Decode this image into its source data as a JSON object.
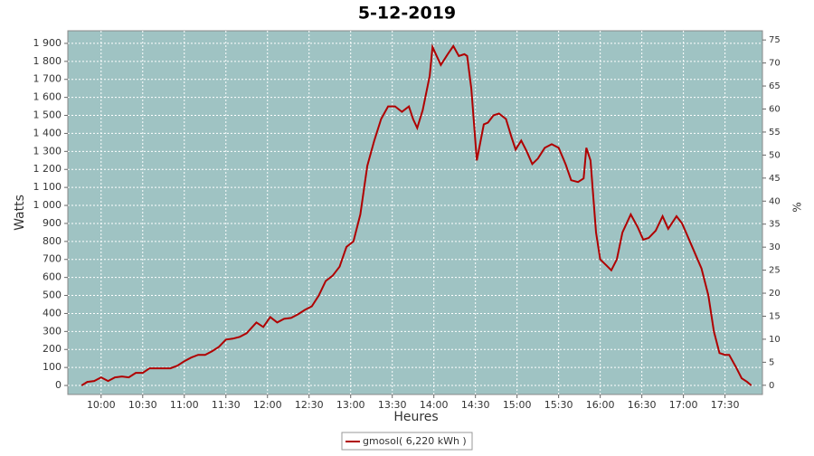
{
  "chart_data": {
    "type": "line",
    "title": "5-12-2019",
    "xlabel": "Heures",
    "ylabel": "Watts",
    "y2label": "%",
    "x": [
      "09:46",
      "09:50",
      "09:55",
      "10:00",
      "10:05",
      "10:10",
      "10:15",
      "10:20",
      "10:25",
      "10:30",
      "10:35",
      "10:40",
      "10:45",
      "10:50",
      "10:55",
      "11:00",
      "11:05",
      "11:10",
      "11:15",
      "11:20",
      "11:25",
      "11:30",
      "11:35",
      "11:40",
      "11:45",
      "11:52",
      "11:57",
      "12:02",
      "12:07",
      "12:12",
      "12:17",
      "12:22",
      "12:27",
      "12:32",
      "12:37",
      "12:42",
      "12:47",
      "12:52",
      "12:57",
      "13:02",
      "13:07",
      "13:12",
      "13:17",
      "13:22",
      "13:27",
      "13:32",
      "13:37",
      "13:42",
      "13:45",
      "13:48",
      "13:52",
      "13:57",
      "13:59",
      "14:05",
      "14:10",
      "14:14",
      "14:18",
      "14:22",
      "14:24",
      "14:27",
      "14:31",
      "14:36",
      "14:39",
      "14:43",
      "14:47",
      "14:52",
      "14:56",
      "14:59",
      "15:03",
      "15:07",
      "15:11",
      "15:15",
      "15:20",
      "15:25",
      "15:30",
      "15:35",
      "15:39",
      "15:44",
      "15:48",
      "15:50",
      "15:53",
      "15:57",
      "16:00",
      "16:04",
      "16:08",
      "16:12",
      "16:16",
      "16:22",
      "16:27",
      "16:31",
      "16:35",
      "16:40",
      "16:45",
      "16:49",
      "16:55",
      "16:59",
      "17:03",
      "17:08",
      "17:13",
      "17:18",
      "17:22",
      "17:26",
      "17:30",
      "17:33",
      "17:38",
      "17:42",
      "17:46",
      "17:49"
    ],
    "series": [
      {
        "name": "gmosol( 6,220 kWh )",
        "color": "#b00000",
        "values": [
          0,
          20,
          25,
          45,
          25,
          45,
          50,
          45,
          70,
          70,
          95,
          95,
          95,
          95,
          110,
          135,
          155,
          170,
          170,
          190,
          215,
          255,
          260,
          270,
          290,
          350,
          325,
          380,
          350,
          370,
          375,
          395,
          420,
          440,
          500,
          580,
          610,
          660,
          770,
          800,
          950,
          1220,
          1360,
          1480,
          1550,
          1550,
          1520,
          1550,
          1480,
          1430,
          1530,
          1720,
          1880,
          1780,
          1840,
          1885,
          1830,
          1840,
          1830,
          1650,
          1250,
          1450,
          1460,
          1500,
          1510,
          1480,
          1380,
          1310,
          1360,
          1300,
          1230,
          1260,
          1320,
          1340,
          1320,
          1230,
          1140,
          1130,
          1150,
          1320,
          1250,
          850,
          700,
          670,
          640,
          700,
          850,
          950,
          880,
          810,
          820,
          860,
          940,
          870,
          940,
          900,
          830,
          740,
          650,
          500,
          300,
          180,
          170,
          170,
          100,
          40,
          20,
          0
        ]
      }
    ],
    "xlim": [
      "09:36",
      "17:57"
    ],
    "xticks": [
      "10:00",
      "10:30",
      "11:00",
      "11:30",
      "12:00",
      "12:30",
      "13:00",
      "13:30",
      "14:00",
      "14:30",
      "15:00",
      "15:30",
      "16:00",
      "16:30",
      "17:00",
      "17:30"
    ],
    "ylim": [
      -50,
      1970
    ],
    "yticks": [
      0,
      100,
      200,
      300,
      400,
      500,
      600,
      700,
      800,
      900,
      {
        "value": 1000,
        "label": "1 000"
      },
      {
        "value": 1100,
        "label": "1 100"
      },
      {
        "value": 1200,
        "label": "1 200"
      },
      {
        "value": 1300,
        "label": "1 300"
      },
      {
        "value": 1400,
        "label": "1 400"
      },
      {
        "value": 1500,
        "label": "1 500"
      },
      {
        "value": 1600,
        "label": "1 600"
      },
      {
        "value": 1700,
        "label": "1 700"
      },
      {
        "value": 1800,
        "label": "1 800"
      },
      {
        "value": 1900,
        "label": "1 900"
      }
    ],
    "y2lim": [
      -2,
      77
    ],
    "y2ticks": [
      0,
      5,
      10,
      15,
      20,
      25,
      30,
      35,
      40,
      45,
      50,
      55,
      60,
      65,
      70,
      75
    ],
    "grid": true,
    "legend": "bottom"
  }
}
